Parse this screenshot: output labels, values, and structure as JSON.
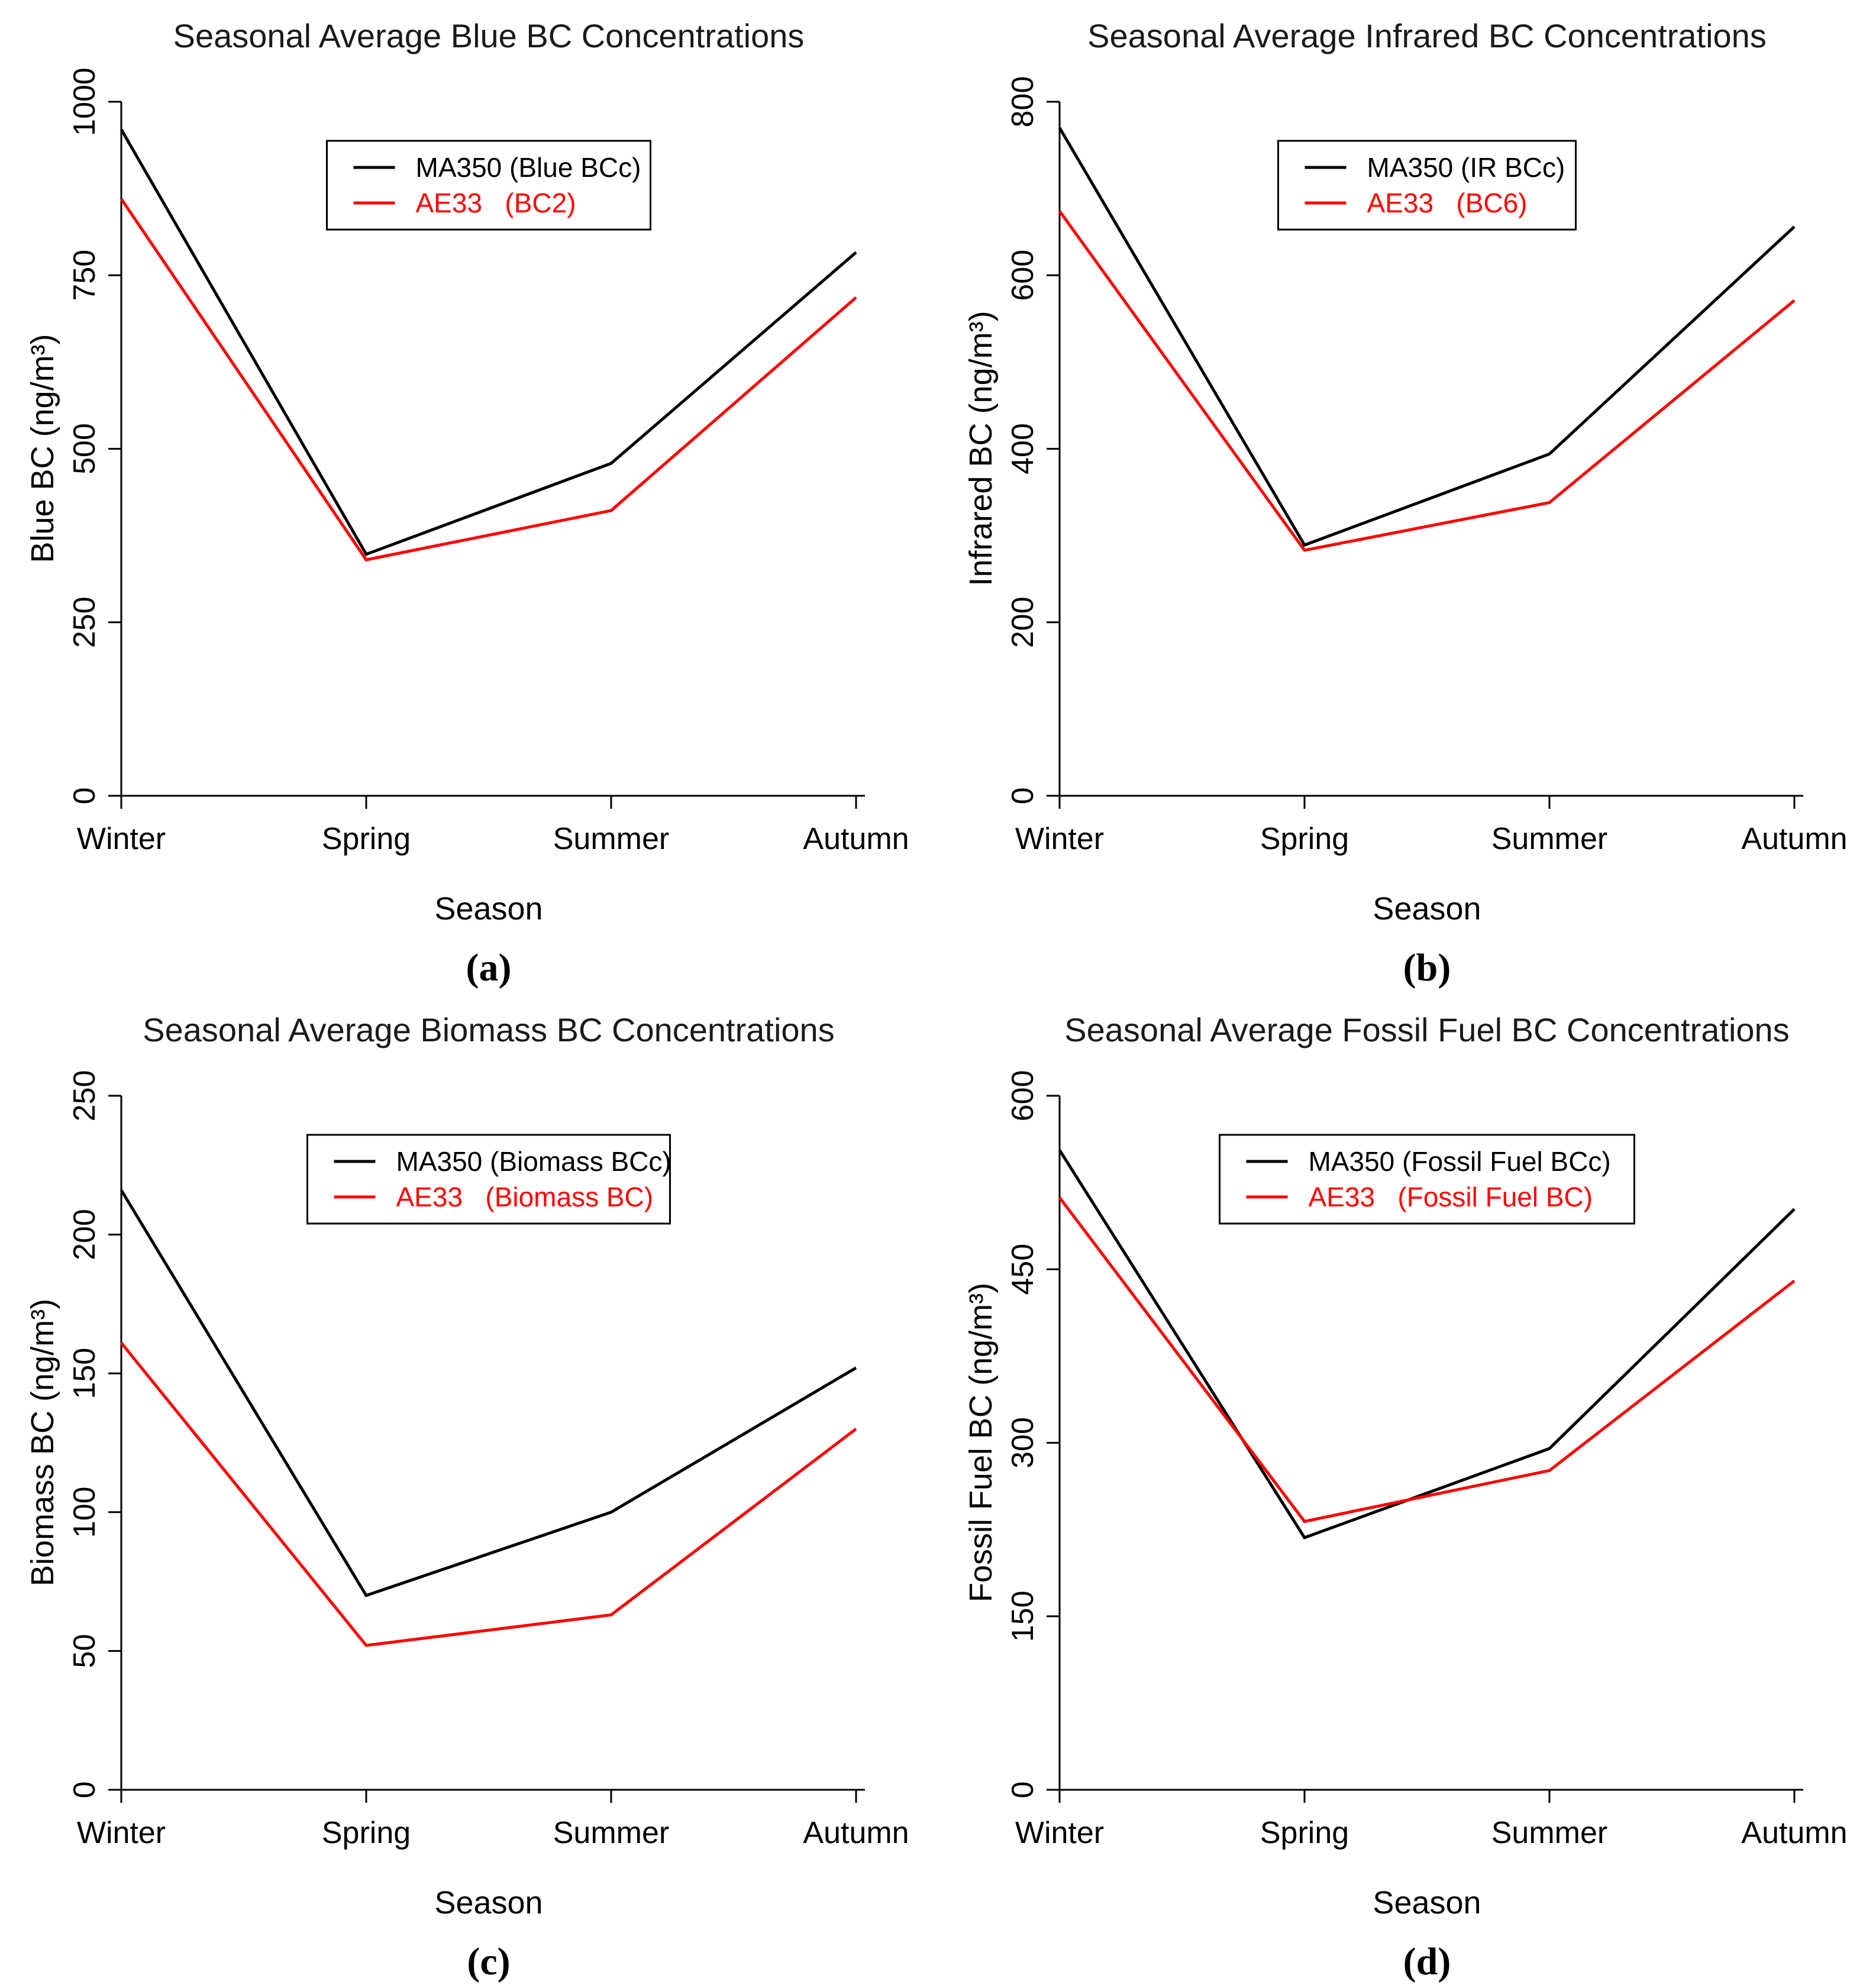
{
  "figure": {
    "background": "#ffffff",
    "series_colors": {
      "ma350": "#000000",
      "ae33": "#FF0000"
    }
  },
  "chart_data": [
    {
      "type": "line",
      "title": "Seasonal Average Blue BC Concentrations",
      "xlabel": "Season",
      "ylabel": "Blue BC (ng/m³)",
      "caption": "(a)",
      "categories": [
        "Winter",
        "Spring",
        "Summer",
        "Autumn"
      ],
      "ylim": [
        0,
        1000
      ],
      "yticks": [
        0,
        250,
        500,
        750,
        1000
      ],
      "grid": false,
      "legend_position": "top-center",
      "series": [
        {
          "name": "MA350 (Blue BCc)",
          "color": "#000000",
          "values": [
            960,
            348,
            479,
            783
          ]
        },
        {
          "name": "AE33   (BC2)",
          "color": "#FF0000",
          "values": [
            860,
            340,
            411,
            718
          ]
        }
      ]
    },
    {
      "type": "line",
      "title": "Seasonal Average Infrared BC Concentrations",
      "xlabel": "Season",
      "ylabel": "Infrared BC (ng/m³)",
      "caption": "(b)",
      "categories": [
        "Winter",
        "Spring",
        "Summer",
        "Autumn"
      ],
      "ylim": [
        0,
        800
      ],
      "yticks": [
        0,
        200,
        400,
        600,
        800
      ],
      "grid": false,
      "legend_position": "top-center",
      "series": [
        {
          "name": "MA350 (IR BCc)",
          "color": "#000000",
          "values": [
            770,
            289,
            394,
            656
          ]
        },
        {
          "name": "AE33   (BC6)",
          "color": "#FF0000",
          "values": [
            674,
            283,
            338,
            571
          ]
        }
      ]
    },
    {
      "type": "line",
      "title": "Seasonal Average Biomass BC Concentrations",
      "xlabel": "Season",
      "ylabel": "Biomass BC (ng/m³)",
      "caption": "(c)",
      "categories": [
        "Winter",
        "Spring",
        "Summer",
        "Autumn"
      ],
      "ylim": [
        0,
        250
      ],
      "yticks": [
        0,
        50,
        100,
        150,
        200,
        250
      ],
      "grid": false,
      "legend_position": "top-center",
      "series": [
        {
          "name": "MA350 (Biomass BCc)",
          "color": "#000000",
          "values": [
            216,
            70,
            100,
            152
          ]
        },
        {
          "name": "AE33   (Biomass BC)",
          "color": "#FF0000",
          "values": [
            161,
            52,
            63,
            130
          ]
        }
      ]
    },
    {
      "type": "line",
      "title": "Seasonal Average Fossil Fuel BC Concentrations",
      "xlabel": "Season",
      "ylabel": "Fossil Fuel BC (ng/m³)",
      "caption": "(d)",
      "categories": [
        "Winter",
        "Spring",
        "Summer",
        "Autumn"
      ],
      "ylim": [
        0,
        600
      ],
      "yticks": [
        0,
        150,
        300,
        450,
        600
      ],
      "grid": false,
      "legend_position": "top-center",
      "series": [
        {
          "name": "MA350 (Fossil Fuel BCc)",
          "color": "#000000",
          "values": [
            553,
            218,
            295,
            502
          ]
        },
        {
          "name": "AE33   (Fossil Fuel BC)",
          "color": "#FF0000",
          "values": [
            512,
            232,
            276,
            440
          ]
        }
      ]
    }
  ]
}
